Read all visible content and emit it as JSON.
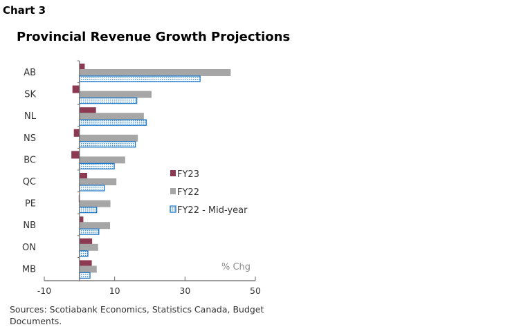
{
  "chart_label": "Chart 3",
  "chart_data": {
    "type": "bar",
    "orientation": "horizontal",
    "title": "Provincial Revenue Growth Projections",
    "unit_label": "% Chg",
    "categories": [
      "AB",
      "SK",
      "NL",
      "NS",
      "BC",
      "QC",
      "PE",
      "NB",
      "ON",
      "MB"
    ],
    "series": [
      {
        "name": "FY23",
        "color": "#8b3a52",
        "values": [
          1.5,
          -2.0,
          4.7,
          -1.6,
          -2.3,
          2.2,
          -0.2,
          1.1,
          3.6,
          3.5
        ]
      },
      {
        "name": "FY22",
        "color": "#a6a6a6",
        "values": [
          43.0,
          20.5,
          18.3,
          16.6,
          13.0,
          10.5,
          8.8,
          8.7,
          5.3,
          4.9
        ]
      },
      {
        "name": "FY22 - Mid-year",
        "color": "#1f78c8",
        "pattern": "dotted",
        "values": [
          34.3,
          16.3,
          19.0,
          15.9,
          9.9,
          7.1,
          4.9,
          5.5,
          2.4,
          3.0
        ]
      }
    ],
    "xlim": [
      -10,
      50
    ],
    "xticks": [
      -10,
      10,
      30,
      50
    ],
    "xtick_labels": [
      "-10",
      "10",
      "30",
      "50"
    ],
    "grid": false,
    "legend_placement": "center-right"
  },
  "source": "Sources: Scotiabank Economics, Statistics Canada, Budget Documents."
}
